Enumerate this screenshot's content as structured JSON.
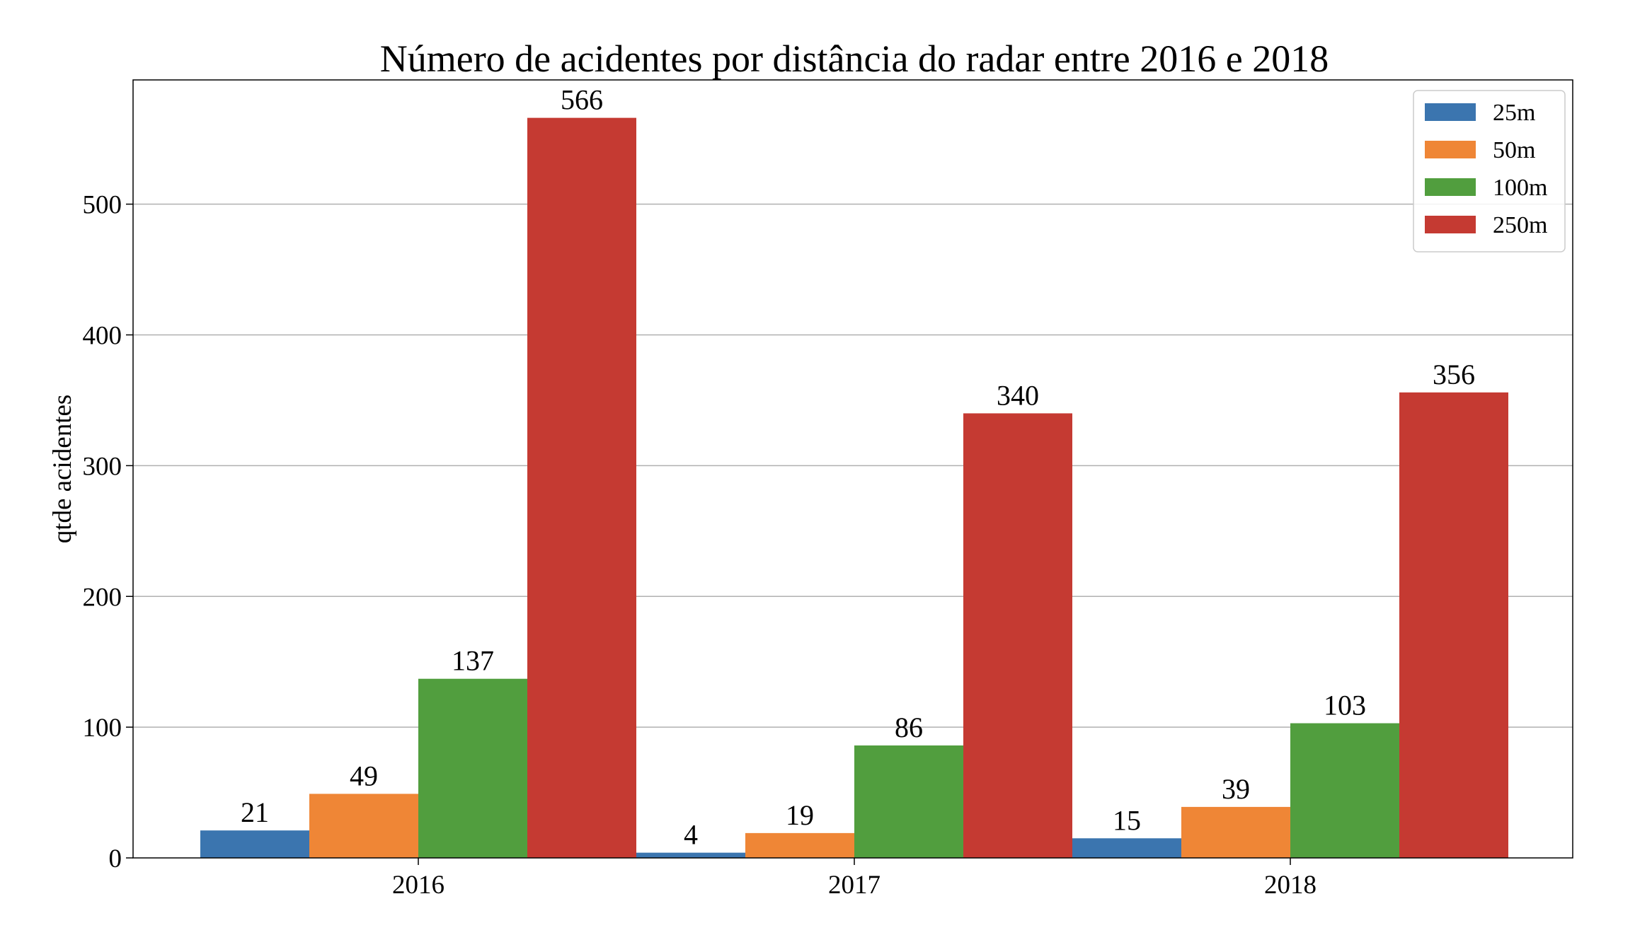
{
  "chart_data": {
    "type": "bar",
    "title": "Número de acidentes por distância do radar entre 2016 e 2018",
    "xlabel": "",
    "ylabel": "qtde acidentes",
    "categories": [
      "2016",
      "2017",
      "2018"
    ],
    "series": [
      {
        "name": "25m",
        "color": "#3b75af",
        "values": [
          21,
          4,
          15
        ]
      },
      {
        "name": "50m",
        "color": "#ef8636",
        "values": [
          49,
          19,
          39
        ]
      },
      {
        "name": "100m",
        "color": "#519e3e",
        "values": [
          137,
          86,
          103
        ]
      },
      {
        "name": "250m",
        "color": "#c53a32",
        "values": [
          566,
          340,
          356
        ]
      }
    ],
    "ylim": [
      0,
      595
    ],
    "yticks": [
      0,
      100,
      200,
      300,
      400,
      500
    ],
    "grid": "y",
    "legend_position": "top-right",
    "data_labels": true
  }
}
